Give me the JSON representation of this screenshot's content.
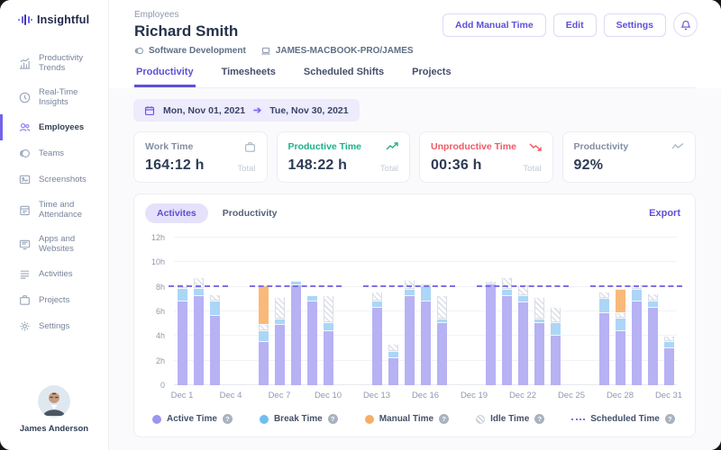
{
  "sidebar": {
    "logo_text": "Insightful",
    "items": [
      {
        "label": "Productivity Trends",
        "icon": "trends-icon",
        "active": false
      },
      {
        "label": "Real-Time Insights",
        "icon": "realtime-icon",
        "active": false
      },
      {
        "label": "Employees",
        "icon": "employees-icon",
        "active": true
      },
      {
        "label": "Teams",
        "icon": "teams-icon",
        "active": false
      },
      {
        "label": "Screenshots",
        "icon": "screenshots-icon",
        "active": false
      },
      {
        "label": "Time and Attendance",
        "icon": "attendance-icon",
        "active": false
      },
      {
        "label": "Apps and Websites",
        "icon": "apps-icon",
        "active": false
      },
      {
        "label": "Activities",
        "icon": "activities-icon",
        "active": false
      },
      {
        "label": "Projects",
        "icon": "projects-icon",
        "active": false
      },
      {
        "label": "Settings",
        "icon": "settings-icon",
        "active": false
      }
    ],
    "user": {
      "name": "James Anderson"
    }
  },
  "header": {
    "breadcrumb": "Employees",
    "title": "Richard Smith",
    "team": "Software Development",
    "device": "JAMES-MACBOOK-PRO/JAMES",
    "actions": [
      "Add Manual Time",
      "Edit",
      "Settings"
    ],
    "tabs": [
      {
        "label": "Productivity",
        "active": true
      },
      {
        "label": "Timesheets",
        "active": false
      },
      {
        "label": "Scheduled Shifts",
        "active": false
      },
      {
        "label": "Projects",
        "active": false
      }
    ]
  },
  "filters": {
    "date_start": "Mon, Nov 01, 2021",
    "date_end": "Tue, Nov 30, 2021"
  },
  "stats": [
    {
      "label": "Work Time",
      "value": "164:12 h",
      "note": "Total",
      "icon": "briefcase-icon",
      "label_color": "#828ea2",
      "icon_color": "#aab4c4"
    },
    {
      "label": "Productive Time",
      "value": "148:22 h",
      "note": "Total",
      "icon": "trend-up-icon",
      "label_color": "#1db089",
      "icon_color": "#1db089"
    },
    {
      "label": "Unproductive Time",
      "value": "00:36 h",
      "note": "Total",
      "icon": "trend-down-icon",
      "label_color": "#ef5964",
      "icon_color": "#ef5964"
    },
    {
      "label": "Productivity",
      "value": "92%",
      "note": "",
      "icon": "line-chart-icon",
      "label_color": "#828ea2",
      "icon_color": "#aab4c4"
    }
  ],
  "chart_panel": {
    "toggles": [
      "Activites",
      "Productivity"
    ],
    "active_toggle": "Activites",
    "export_label": "Export"
  },
  "chart_data": {
    "type": "bar",
    "stacked": true,
    "unit": "hours",
    "ylim": [
      0,
      12
    ],
    "yticks": [
      "0",
      "2h",
      "4h",
      "6h",
      "8h",
      "10h",
      "12h"
    ],
    "xtick_days": [
      1,
      4,
      7,
      10,
      13,
      16,
      19,
      22,
      25,
      28,
      31
    ],
    "xticks": [
      "Dec 1",
      "Dec 4",
      "Dec 7",
      "Dec 10",
      "Dec 13",
      "Dec 16",
      "Dec 19",
      "Dec 22",
      "Dec 25",
      "Dec 28",
      "Dec 31"
    ],
    "days_in_month": 31,
    "scheduled_hours": 8,
    "scheduled_segments": [
      [
        1,
        3
      ],
      [
        6,
        10
      ],
      [
        13,
        17
      ],
      [
        20,
        24
      ],
      [
        27,
        31
      ]
    ],
    "colors": {
      "active": "#b6b2f4",
      "break": "#abd6f7",
      "manual": "#f9ba79",
      "idle": "hatch",
      "scheduled": "#7e71e3"
    },
    "bars": [
      {
        "day": 1,
        "segments": [
          [
            "active",
            6.9
          ],
          [
            "break",
            1.0
          ],
          [
            "idle",
            0.4
          ]
        ]
      },
      {
        "day": 2,
        "segments": [
          [
            "active",
            7.3
          ],
          [
            "break",
            0.6
          ],
          [
            "idle",
            0.9
          ]
        ]
      },
      {
        "day": 3,
        "segments": [
          [
            "active",
            5.7
          ],
          [
            "break",
            1.2
          ],
          [
            "idle",
            0.5
          ]
        ]
      },
      {
        "day": 6,
        "segments": [
          [
            "active",
            3.6
          ],
          [
            "break",
            0.9
          ],
          [
            "idle",
            0.5
          ],
          [
            "manual",
            3.1
          ]
        ]
      },
      {
        "day": 7,
        "segments": [
          [
            "active",
            5.0
          ],
          [
            "break",
            0.4
          ],
          [
            "idle",
            1.8
          ]
        ]
      },
      {
        "day": 8,
        "segments": [
          [
            "active",
            8.2
          ],
          [
            "break",
            0.3
          ]
        ]
      },
      {
        "day": 9,
        "segments": [
          [
            "active",
            6.9
          ],
          [
            "break",
            0.4
          ]
        ]
      },
      {
        "day": 10,
        "segments": [
          [
            "active",
            4.5
          ],
          [
            "break",
            0.6
          ],
          [
            "idle",
            2.2
          ]
        ]
      },
      {
        "day": 13,
        "segments": [
          [
            "active",
            6.4
          ],
          [
            "break",
            0.5
          ],
          [
            "idle",
            0.7
          ]
        ]
      },
      {
        "day": 14,
        "segments": [
          [
            "active",
            2.3
          ],
          [
            "break",
            0.5
          ],
          [
            "idle",
            0.6
          ]
        ]
      },
      {
        "day": 15,
        "segments": [
          [
            "active",
            7.3
          ],
          [
            "break",
            0.5
          ],
          [
            "idle",
            0.8
          ]
        ]
      },
      {
        "day": 16,
        "segments": [
          [
            "active",
            6.9
          ],
          [
            "break",
            1.2
          ],
          [
            "idle",
            0.2
          ]
        ]
      },
      {
        "day": 17,
        "segments": [
          [
            "active",
            5.1
          ],
          [
            "break",
            0.3
          ],
          [
            "idle",
            1.9
          ]
        ]
      },
      {
        "day": 20,
        "segments": [
          [
            "active",
            8.3
          ],
          [
            "idle",
            0.2
          ]
        ]
      },
      {
        "day": 21,
        "segments": [
          [
            "active",
            7.3
          ],
          [
            "break",
            0.5
          ],
          [
            "idle",
            1.0
          ]
        ]
      },
      {
        "day": 22,
        "segments": [
          [
            "active",
            6.8
          ],
          [
            "break",
            0.5
          ],
          [
            "idle",
            0.9
          ]
        ]
      },
      {
        "day": 23,
        "segments": [
          [
            "active",
            5.1
          ],
          [
            "break",
            0.3
          ],
          [
            "idle",
            1.8
          ]
        ]
      },
      {
        "day": 24,
        "segments": [
          [
            "active",
            4.1
          ],
          [
            "break",
            1.0
          ],
          [
            "idle",
            1.3
          ]
        ]
      },
      {
        "day": 27,
        "segments": [
          [
            "active",
            5.9
          ],
          [
            "break",
            1.2
          ],
          [
            "idle",
            0.5
          ]
        ]
      },
      {
        "day": 28,
        "segments": [
          [
            "active",
            4.5
          ],
          [
            "break",
            1.0
          ],
          [
            "idle",
            0.4
          ],
          [
            "manual",
            1.9
          ]
        ]
      },
      {
        "day": 29,
        "segments": [
          [
            "active",
            6.9
          ],
          [
            "break",
            0.9
          ],
          [
            "idle",
            0.4
          ]
        ]
      },
      {
        "day": 30,
        "segments": [
          [
            "active",
            6.4
          ],
          [
            "break",
            0.5
          ],
          [
            "idle",
            0.6
          ]
        ]
      },
      {
        "day": 31,
        "segments": [
          [
            "active",
            3.1
          ],
          [
            "break",
            0.5
          ],
          [
            "idle",
            0.4
          ]
        ]
      }
    ],
    "legend": [
      {
        "label": "Active Time",
        "type": "active"
      },
      {
        "label": "Break Time",
        "type": "break"
      },
      {
        "label": "Manual Time",
        "type": "manual"
      },
      {
        "label": "Idle Time",
        "type": "idle"
      },
      {
        "label": "Scheduled Time",
        "type": "scheduled"
      }
    ]
  }
}
